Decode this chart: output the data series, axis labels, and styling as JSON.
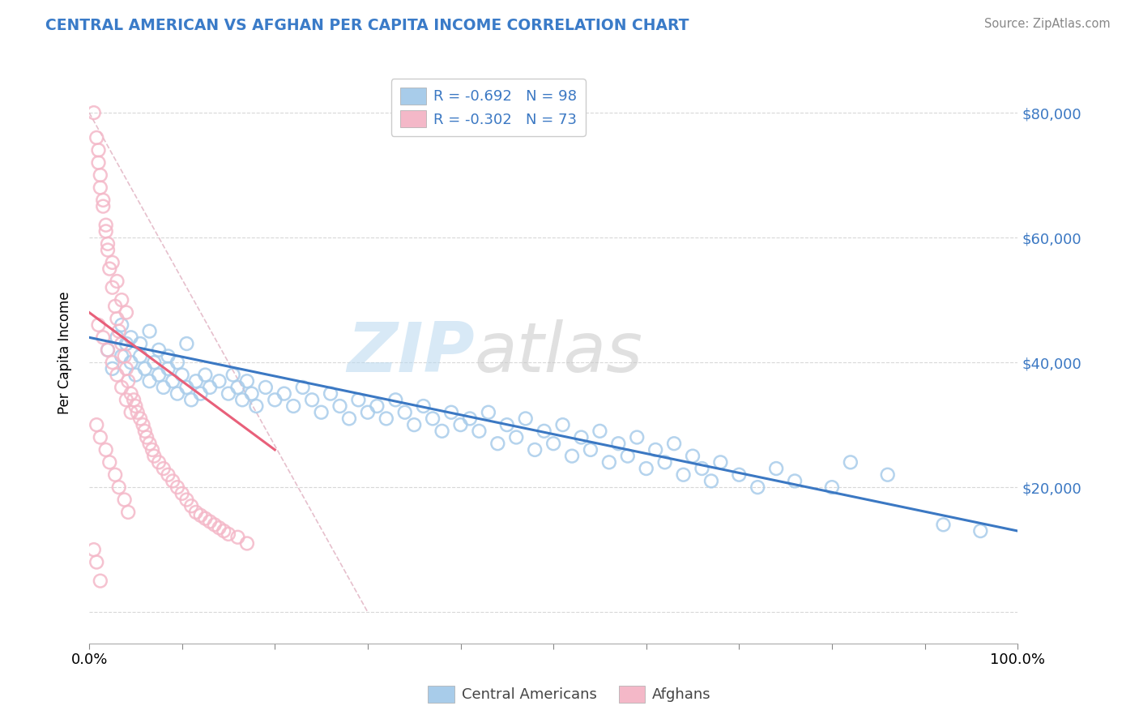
{
  "title": "CENTRAL AMERICAN VS AFGHAN PER CAPITA INCOME CORRELATION CHART",
  "source": "Source: ZipAtlas.com",
  "ylabel": "Per Capita Income",
  "xlim": [
    0.0,
    1.0
  ],
  "ylim": [
    -5000,
    88000
  ],
  "yticks": [
    0,
    20000,
    40000,
    60000,
    80000
  ],
  "ytick_labels": [
    "",
    "$20,000",
    "$40,000",
    "$60,000",
    "$80,000"
  ],
  "xtick_positions": [
    0.0,
    0.1,
    0.2,
    0.3,
    0.4,
    0.5,
    0.6,
    0.7,
    0.8,
    0.9,
    1.0
  ],
  "xtick_labels_show": [
    "0.0%",
    "",
    "",
    "",
    "",
    "",
    "",
    "",
    "",
    "",
    "100.0%"
  ],
  "color_blue": "#A8CCEA",
  "color_pink": "#F4B8C8",
  "color_blue_line": "#3B78C3",
  "color_pink_line": "#E8607A",
  "color_diag": "#E0B0C0",
  "color_grid": "#D8D8D8",
  "blue_scatter_x": [
    0.02,
    0.025,
    0.03,
    0.035,
    0.04,
    0.045,
    0.05,
    0.055,
    0.06,
    0.065,
    0.07,
    0.075,
    0.08,
    0.085,
    0.09,
    0.095,
    0.1,
    0.105,
    0.11,
    0.115,
    0.12,
    0.125,
    0.13,
    0.14,
    0.15,
    0.155,
    0.16,
    0.165,
    0.17,
    0.175,
    0.18,
    0.19,
    0.2,
    0.21,
    0.22,
    0.23,
    0.24,
    0.25,
    0.26,
    0.27,
    0.28,
    0.29,
    0.3,
    0.31,
    0.32,
    0.33,
    0.34,
    0.35,
    0.36,
    0.37,
    0.38,
    0.39,
    0.4,
    0.41,
    0.42,
    0.43,
    0.44,
    0.45,
    0.46,
    0.47,
    0.48,
    0.49,
    0.5,
    0.51,
    0.52,
    0.53,
    0.54,
    0.55,
    0.56,
    0.57,
    0.58,
    0.59,
    0.6,
    0.61,
    0.62,
    0.63,
    0.64,
    0.65,
    0.66,
    0.67,
    0.68,
    0.7,
    0.72,
    0.74,
    0.76,
    0.8,
    0.82,
    0.86,
    0.92,
    0.96,
    0.035,
    0.045,
    0.055,
    0.065,
    0.075,
    0.085,
    0.095,
    0.105
  ],
  "blue_scatter_y": [
    42000,
    39000,
    44000,
    41000,
    43000,
    40000,
    38000,
    41000,
    39000,
    37000,
    40000,
    38000,
    36000,
    39000,
    37000,
    35000,
    38000,
    36000,
    34000,
    37000,
    35000,
    38000,
    36000,
    37000,
    35000,
    38000,
    36000,
    34000,
    37000,
    35000,
    33000,
    36000,
    34000,
    35000,
    33000,
    36000,
    34000,
    32000,
    35000,
    33000,
    31000,
    34000,
    32000,
    33000,
    31000,
    34000,
    32000,
    30000,
    33000,
    31000,
    29000,
    32000,
    30000,
    31000,
    29000,
    32000,
    27000,
    30000,
    28000,
    31000,
    26000,
    29000,
    27000,
    30000,
    25000,
    28000,
    26000,
    29000,
    24000,
    27000,
    25000,
    28000,
    23000,
    26000,
    24000,
    27000,
    22000,
    25000,
    23000,
    21000,
    24000,
    22000,
    20000,
    23000,
    21000,
    20000,
    24000,
    22000,
    14000,
    13000,
    46000,
    44000,
    43000,
    45000,
    42000,
    41000,
    40000,
    43000
  ],
  "pink_scatter_x": [
    0.005,
    0.008,
    0.01,
    0.012,
    0.015,
    0.018,
    0.02,
    0.022,
    0.025,
    0.028,
    0.03,
    0.032,
    0.035,
    0.038,
    0.04,
    0.042,
    0.045,
    0.048,
    0.05,
    0.052,
    0.055,
    0.058,
    0.06,
    0.062,
    0.065,
    0.068,
    0.07,
    0.075,
    0.08,
    0.085,
    0.09,
    0.095,
    0.1,
    0.105,
    0.11,
    0.115,
    0.12,
    0.125,
    0.13,
    0.135,
    0.14,
    0.145,
    0.15,
    0.16,
    0.17,
    0.01,
    0.012,
    0.015,
    0.018,
    0.02,
    0.025,
    0.03,
    0.035,
    0.04,
    0.01,
    0.015,
    0.02,
    0.025,
    0.03,
    0.035,
    0.04,
    0.045,
    0.008,
    0.012,
    0.018,
    0.022,
    0.028,
    0.032,
    0.038,
    0.042,
    0.005,
    0.008,
    0.012
  ],
  "pink_scatter_y": [
    80000,
    76000,
    72000,
    68000,
    65000,
    61000,
    58000,
    55000,
    52000,
    49000,
    47000,
    45000,
    43000,
    41000,
    39000,
    37000,
    35000,
    34000,
    33000,
    32000,
    31000,
    30000,
    29000,
    28000,
    27000,
    26000,
    25000,
    24000,
    23000,
    22000,
    21000,
    20000,
    19000,
    18000,
    17000,
    16000,
    15500,
    15000,
    14500,
    14000,
    13500,
    13000,
    12500,
    12000,
    11000,
    74000,
    70000,
    66000,
    62000,
    59000,
    56000,
    53000,
    50000,
    48000,
    46000,
    44000,
    42000,
    40000,
    38000,
    36000,
    34000,
    32000,
    30000,
    28000,
    26000,
    24000,
    22000,
    20000,
    18000,
    16000,
    10000,
    8000,
    5000
  ],
  "blue_line_x": [
    0.0,
    1.0
  ],
  "blue_line_y": [
    44000,
    13000
  ],
  "pink_line_x": [
    0.0,
    0.2
  ],
  "pink_line_y": [
    48000,
    26000
  ],
  "diag_line_x": [
    0.0,
    0.3
  ],
  "diag_line_y": [
    80000,
    0
  ],
  "legend_r1": "R = -0.692   N = 98",
  "legend_r2": "R = -0.302   N = 73",
  "legend_blue_label": "Central Americans",
  "legend_pink_label": "Afghans",
  "watermark_zip": "ZIP",
  "watermark_atlas": "atlas"
}
